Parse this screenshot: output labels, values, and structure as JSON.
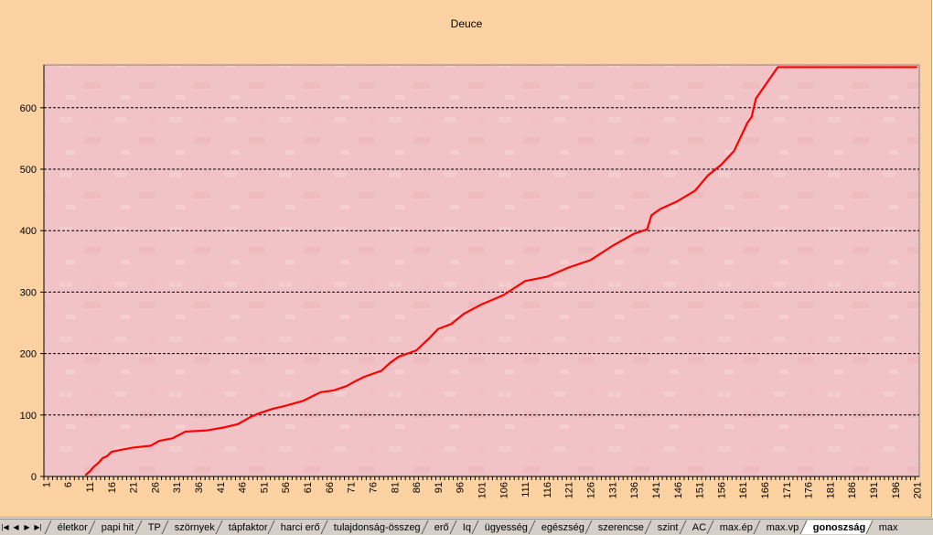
{
  "chart_data": {
    "type": "line",
    "title": "Deuce",
    "xlabel": "",
    "ylabel": "",
    "categories_range": [
      1,
      201
    ],
    "x_tick_step": 5,
    "ylim": [
      0,
      670
    ],
    "y_ticks": [
      0,
      100,
      200,
      300,
      400,
      500,
      600
    ],
    "grid": "horizontal dashed",
    "legend": "none",
    "line_color": "#FF0000",
    "plot_background": "#F2C3C6",
    "series": [
      {
        "points": [
          [
            10,
            2
          ],
          [
            11,
            8
          ],
          [
            12,
            16
          ],
          [
            13,
            22
          ],
          [
            14,
            30
          ],
          [
            15,
            33
          ],
          [
            16,
            40
          ],
          [
            18,
            43
          ],
          [
            21,
            47
          ],
          [
            25,
            50
          ],
          [
            27,
            58
          ],
          [
            30,
            62
          ],
          [
            33,
            73
          ],
          [
            38,
            75
          ],
          [
            42,
            80
          ],
          [
            45,
            85
          ],
          [
            48,
            97
          ],
          [
            50,
            103
          ],
          [
            53,
            110
          ],
          [
            56,
            115
          ],
          [
            60,
            123
          ],
          [
            62,
            130
          ],
          [
            64,
            137
          ],
          [
            67,
            140
          ],
          [
            70,
            147
          ],
          [
            72,
            155
          ],
          [
            74,
            162
          ],
          [
            78,
            172
          ],
          [
            80,
            185
          ],
          [
            82,
            195
          ],
          [
            86,
            205
          ],
          [
            89,
            225
          ],
          [
            91,
            240
          ],
          [
            94,
            248
          ],
          [
            97,
            265
          ],
          [
            101,
            280
          ],
          [
            106,
            295
          ],
          [
            111,
            318
          ],
          [
            116,
            325
          ],
          [
            121,
            340
          ],
          [
            126,
            352
          ],
          [
            131,
            375
          ],
          [
            136,
            395
          ],
          [
            139,
            402
          ],
          [
            140,
            425
          ],
          [
            142,
            435
          ],
          [
            146,
            448
          ],
          [
            150,
            465
          ],
          [
            153,
            490
          ],
          [
            156,
            507
          ],
          [
            159,
            530
          ],
          [
            162,
            575
          ],
          [
            163,
            585
          ],
          [
            164,
            615
          ],
          [
            169,
            666
          ],
          [
            201,
            666
          ]
        ]
      }
    ]
  },
  "tabs": {
    "items": [
      "életkor",
      "papi hit",
      "TP",
      "szörnyek",
      "tápfaktor",
      "harci erő",
      "tulajdonság-összeg",
      "erő",
      "Iq",
      "ügyesség",
      "egészség",
      "szerencse",
      "szint",
      "AC",
      "max.ép",
      "max.vp",
      "gonoszság",
      "max"
    ],
    "active": "gonoszság",
    "nav": [
      "first-sheet-icon",
      "prev-sheet-icon",
      "next-sheet-icon",
      "last-sheet-icon"
    ]
  }
}
